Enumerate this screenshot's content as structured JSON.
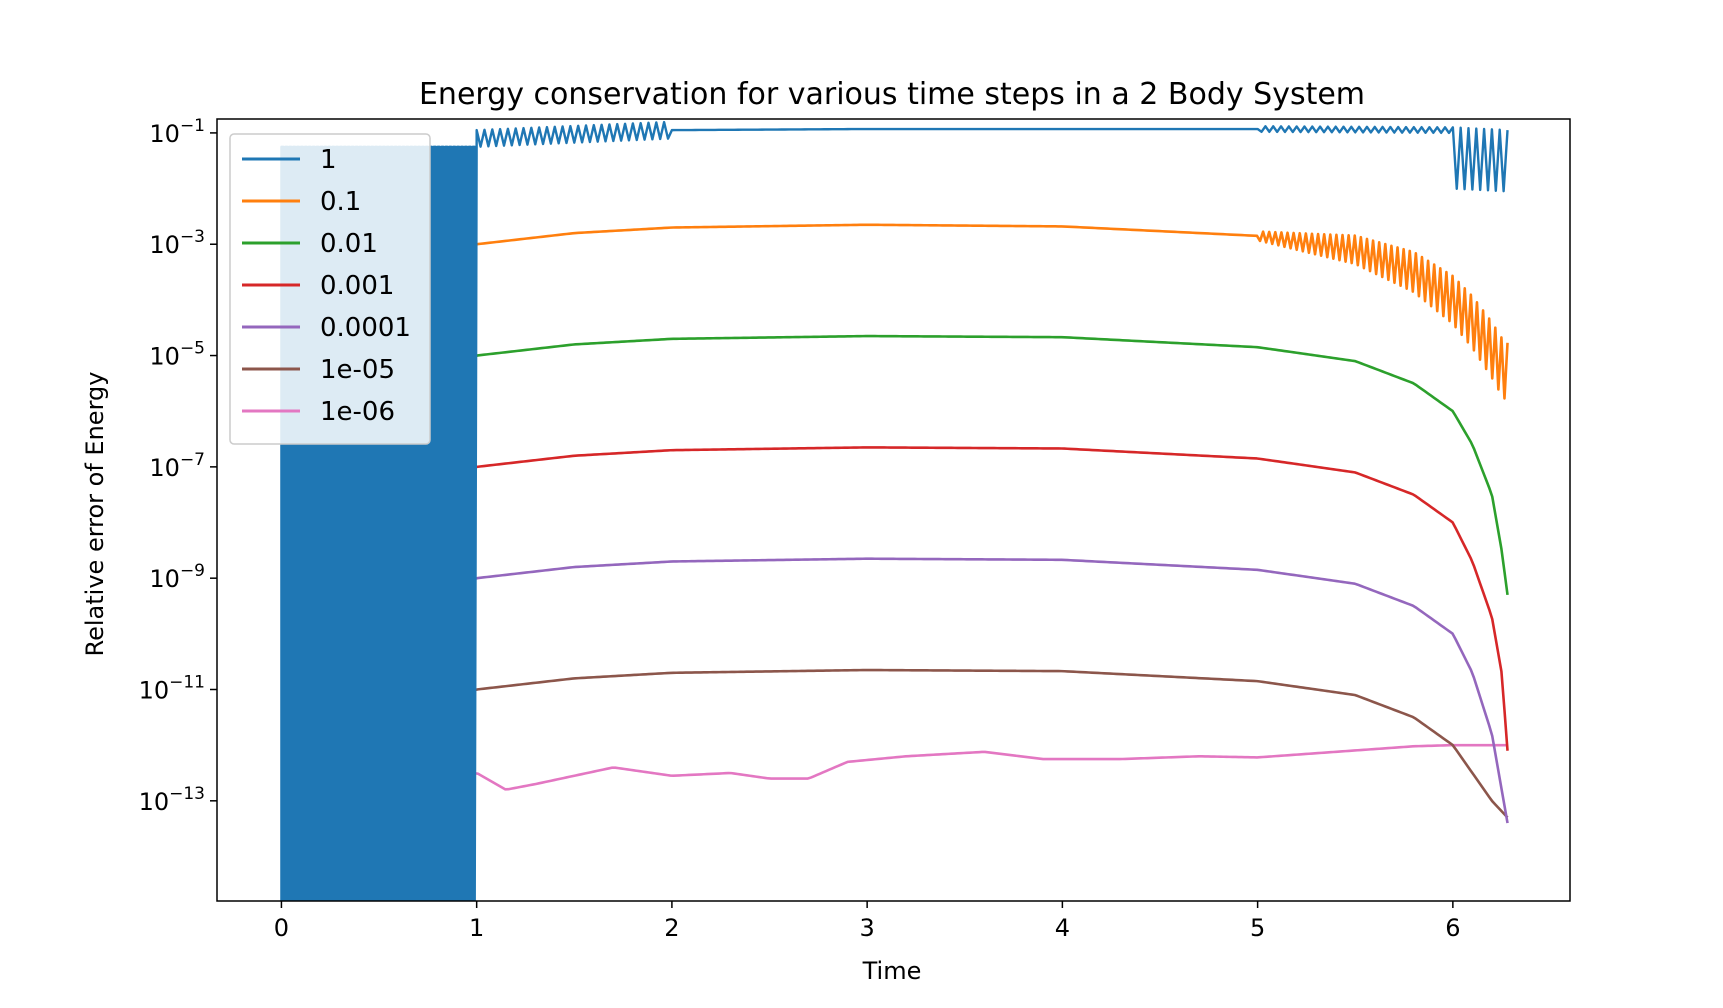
{
  "chart_data": {
    "type": "line",
    "title": "Energy conservation for various time steps in a 2 Body System",
    "xlabel": "Time",
    "ylabel": "Relative error of Energy",
    "xlim": [
      -0.33,
      6.6
    ],
    "ylim_log10": [
      -14.8,
      -0.75
    ],
    "yscale": "log",
    "grid": false,
    "legend_position": "upper-left",
    "x_ticks": [
      {
        "value": 0,
        "label": "0"
      },
      {
        "value": 1,
        "label": "1"
      },
      {
        "value": 2,
        "label": "2"
      },
      {
        "value": 3,
        "label": "3"
      },
      {
        "value": 4,
        "label": "4"
      },
      {
        "value": 5,
        "label": "5"
      },
      {
        "value": 6,
        "label": "6"
      }
    ],
    "y_ticks": [
      {
        "exp": -1,
        "base": "10",
        "sup": "−1"
      },
      {
        "exp": -3,
        "base": "10",
        "sup": "−3"
      },
      {
        "exp": -5,
        "base": "10",
        "sup": "−5"
      },
      {
        "exp": -7,
        "base": "10",
        "sup": "−7"
      },
      {
        "exp": -9,
        "base": "10",
        "sup": "−9"
      },
      {
        "exp": -11,
        "base": "10",
        "sup": "−11"
      },
      {
        "exp": -13,
        "base": "10",
        "sup": "−13"
      }
    ],
    "series": [
      {
        "name": "1",
        "color": "#1f77b4",
        "step": 1,
        "description_points": [
          [
            0.0,
            -1.3
          ],
          [
            1.0,
            -1.1
          ],
          [
            2.0,
            -0.95
          ],
          [
            3.0,
            -0.93
          ],
          [
            5.0,
            -0.93
          ],
          [
            6.0,
            -0.95
          ],
          [
            6.28,
            -1.0
          ]
        ],
        "oscillation": {
          "from": 0.0,
          "to": 1.0,
          "dt": 0.02,
          "high": -1.25,
          "low": -14.8
        }
      },
      {
        "name": "0.1",
        "color": "#ff7f0e",
        "step": 0.1,
        "points": [
          [
            0.02,
            -5.3
          ],
          [
            0.2,
            -4.0
          ],
          [
            0.5,
            -3.4
          ],
          [
            1.0,
            -3.0
          ],
          [
            1.5,
            -2.8
          ],
          [
            2.0,
            -2.7
          ],
          [
            3.0,
            -2.65
          ],
          [
            4.0,
            -2.68
          ],
          [
            5.0,
            -2.85
          ],
          [
            5.5,
            -3.1
          ],
          [
            5.8,
            -3.5
          ],
          [
            6.0,
            -4.0
          ],
          [
            6.1,
            -4.4
          ],
          [
            6.2,
            -4.9
          ],
          [
            6.25,
            -5.2
          ],
          [
            6.28,
            -5.3
          ]
        ]
      },
      {
        "name": "0.01",
        "color": "#2ca02c",
        "step": 0.01,
        "points": [
          [
            0.02,
            -8.3
          ],
          [
            0.1,
            -7.2
          ],
          [
            0.3,
            -6.0
          ],
          [
            0.6,
            -5.4
          ],
          [
            1.0,
            -5.0
          ],
          [
            1.5,
            -4.8
          ],
          [
            2.0,
            -4.7
          ],
          [
            3.0,
            -4.65
          ],
          [
            4.0,
            -4.67
          ],
          [
            5.0,
            -4.85
          ],
          [
            5.5,
            -5.1
          ],
          [
            5.8,
            -5.5
          ],
          [
            6.0,
            -6.0
          ],
          [
            6.1,
            -6.6
          ],
          [
            6.2,
            -7.5
          ],
          [
            6.25,
            -8.5
          ],
          [
            6.28,
            -9.3
          ]
        ]
      },
      {
        "name": "0.001",
        "color": "#d62728",
        "step": 0.001,
        "points": [
          [
            0.02,
            -10.4
          ],
          [
            0.1,
            -9.3
          ],
          [
            0.3,
            -8.0
          ],
          [
            0.6,
            -7.4
          ],
          [
            1.0,
            -7.0
          ],
          [
            1.5,
            -6.8
          ],
          [
            2.0,
            -6.7
          ],
          [
            3.0,
            -6.65
          ],
          [
            4.0,
            -6.67
          ],
          [
            5.0,
            -6.85
          ],
          [
            5.5,
            -7.1
          ],
          [
            5.8,
            -7.5
          ],
          [
            6.0,
            -8.0
          ],
          [
            6.1,
            -8.7
          ],
          [
            6.2,
            -9.7
          ],
          [
            6.25,
            -10.7
          ],
          [
            6.28,
            -12.1
          ]
        ]
      },
      {
        "name": "0.0001",
        "color": "#9467bd",
        "step": 0.0001,
        "points": [
          [
            0.02,
            -12.4
          ],
          [
            0.1,
            -11.4
          ],
          [
            0.3,
            -10.1
          ],
          [
            0.6,
            -9.4
          ],
          [
            1.0,
            -9.0
          ],
          [
            1.5,
            -8.8
          ],
          [
            2.0,
            -8.7
          ],
          [
            3.0,
            -8.65
          ],
          [
            4.0,
            -8.67
          ],
          [
            5.0,
            -8.85
          ],
          [
            5.5,
            -9.1
          ],
          [
            5.8,
            -9.5
          ],
          [
            6.0,
            -10.0
          ],
          [
            6.1,
            -10.7
          ],
          [
            6.2,
            -11.8
          ],
          [
            6.25,
            -12.8
          ],
          [
            6.28,
            -13.4
          ]
        ]
      },
      {
        "name": "1e-05",
        "color": "#8c564b",
        "step": 1e-05,
        "points": [
          [
            0.02,
            -13.2
          ],
          [
            0.1,
            -13.5
          ],
          [
            0.2,
            -13.0
          ],
          [
            0.3,
            -12.2
          ],
          [
            0.6,
            -11.4
          ],
          [
            1.0,
            -11.0
          ],
          [
            1.5,
            -10.8
          ],
          [
            2.0,
            -10.7
          ],
          [
            3.0,
            -10.65
          ],
          [
            4.0,
            -10.67
          ],
          [
            5.0,
            -10.85
          ],
          [
            5.5,
            -11.1
          ],
          [
            5.8,
            -11.5
          ],
          [
            6.0,
            -12.0
          ],
          [
            6.1,
            -12.5
          ],
          [
            6.2,
            -13.0
          ],
          [
            6.28,
            -13.3
          ]
        ]
      },
      {
        "name": "1e-06",
        "color": "#e377c2",
        "step": 1e-06,
        "points": [
          [
            0.02,
            -14.8
          ],
          [
            0.03,
            -13.1
          ],
          [
            0.08,
            -13.6
          ],
          [
            0.15,
            -13.3
          ],
          [
            0.3,
            -12.6
          ],
          [
            0.5,
            -12.45
          ],
          [
            0.7,
            -12.55
          ],
          [
            0.9,
            -12.55
          ],
          [
            1.0,
            -12.5
          ],
          [
            1.15,
            -12.8
          ],
          [
            1.3,
            -12.7
          ],
          [
            1.5,
            -12.55
          ],
          [
            1.7,
            -12.4
          ],
          [
            2.0,
            -12.55
          ],
          [
            2.3,
            -12.5
          ],
          [
            2.5,
            -12.6
          ],
          [
            2.7,
            -12.6
          ],
          [
            2.9,
            -12.3
          ],
          [
            3.2,
            -12.2
          ],
          [
            3.6,
            -12.12
          ],
          [
            3.9,
            -12.25
          ],
          [
            4.3,
            -12.25
          ],
          [
            4.7,
            -12.2
          ],
          [
            5.0,
            -12.22
          ],
          [
            5.4,
            -12.12
          ],
          [
            5.8,
            -12.02
          ],
          [
            6.0,
            -12.0
          ],
          [
            6.28,
            -12.0
          ]
        ]
      }
    ]
  }
}
